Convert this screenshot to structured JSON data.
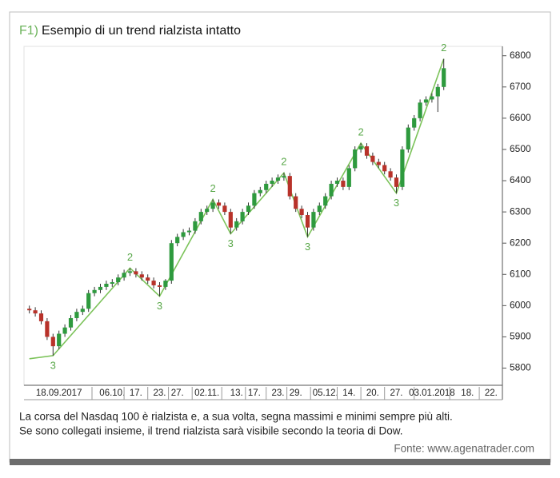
{
  "chart_data": {
    "type": "candlestick",
    "title_prefix": "F1)",
    "title": "Esempio di un trend rialzista intatto",
    "caption": [
      "La corsa del Nasdaq 100 è rialzista e, a sua volta, segna massimi e minimi sempre più alti.",
      "Se sono collegati insieme, il trend rialzista sarà visibile secondo la teoria di Dow."
    ],
    "source": "Fonte: www.agenatrader.com",
    "categories": [
      null,
      null,
      null,
      null,
      null,
      "18.09.2017",
      null,
      null,
      null,
      null,
      null,
      null,
      null,
      null,
      "06.10.",
      null,
      null,
      null,
      "17.",
      null,
      null,
      null,
      "23.",
      null,
      null,
      "27.",
      null,
      null,
      null,
      null,
      "02.11.",
      null,
      null,
      null,
      null,
      "13.",
      null,
      null,
      "17.",
      null,
      null,
      null,
      "23.",
      null,
      null,
      "29.",
      null,
      null,
      null,
      null,
      "05.12.",
      null,
      null,
      null,
      "14.",
      null,
      null,
      null,
      "20.",
      null,
      null,
      null,
      "27.",
      null,
      null,
      null,
      null,
      null,
      "03.01.2018",
      null,
      null,
      null,
      null,
      null,
      "18.",
      null,
      null,
      null,
      "22.",
      null
    ],
    "open": [
      5990,
      5985,
      5975,
      5950,
      5900,
      5870,
      5910,
      5930,
      5960,
      5980,
      5990,
      6040,
      6050,
      6060,
      6070,
      6075,
      6090,
      6105,
      6110,
      6100,
      6090,
      6080,
      6065,
      6060,
      6080,
      6200,
      6220,
      6235,
      6240,
      6270,
      6300,
      6310,
      6330,
      6320,
      6300,
      6250,
      6270,
      6300,
      6320,
      6360,
      6370,
      6390,
      6400,
      6410,
      6415,
      6350,
      6310,
      6290,
      6250,
      6300,
      6320,
      6350,
      6390,
      6400,
      6380,
      6440,
      6500,
      6510,
      6480,
      6460,
      6450,
      6430,
      6410,
      6380,
      6500,
      6570,
      6600,
      6650,
      6660,
      6670,
      6700,
      null,
      null,
      null,
      null,
      null,
      null,
      null,
      null,
      null
    ],
    "high": [
      6000,
      5995,
      5985,
      5960,
      5910,
      5920,
      5940,
      5970,
      5990,
      6000,
      6050,
      6060,
      6070,
      6080,
      6085,
      6100,
      6115,
      6120,
      6120,
      6110,
      6100,
      6090,
      6075,
      6085,
      6210,
      6230,
      6245,
      6250,
      6280,
      6310,
      6320,
      6340,
      6340,
      6330,
      6310,
      6280,
      6310,
      6330,
      6370,
      6380,
      6400,
      6410,
      6420,
      6425,
      6425,
      6360,
      6320,
      6300,
      6310,
      6330,
      6360,
      6400,
      6410,
      6410,
      6450,
      6510,
      6520,
      6520,
      6490,
      6470,
      6460,
      6440,
      6420,
      6510,
      6580,
      6610,
      6660,
      6670,
      6680,
      6710,
      6790,
      null,
      null,
      null,
      null,
      null,
      null,
      null,
      null,
      null
    ],
    "low": [
      5975,
      5965,
      5940,
      5890,
      5840,
      5860,
      5900,
      5920,
      5950,
      5970,
      5980,
      6030,
      6040,
      6050,
      6060,
      6065,
      6080,
      6095,
      6090,
      6080,
      6070,
      6055,
      6030,
      6050,
      6070,
      6190,
      6210,
      6225,
      6230,
      6260,
      6290,
      6300,
      6310,
      6290,
      6230,
      6240,
      6260,
      6290,
      6310,
      6350,
      6360,
      6380,
      6390,
      6400,
      6340,
      6300,
      6280,
      6220,
      6240,
      6290,
      6310,
      6340,
      6380,
      6370,
      6370,
      6430,
      6490,
      6470,
      6450,
      6440,
      6420,
      6400,
      6360,
      6370,
      6490,
      6560,
      6590,
      6640,
      6650,
      6620,
      6690,
      null,
      null,
      null,
      null,
      null,
      null,
      null,
      null,
      null
    ],
    "close": [
      5985,
      5975,
      5950,
      5900,
      5870,
      5910,
      5930,
      5960,
      5980,
      5990,
      6040,
      6050,
      6060,
      6070,
      6075,
      6090,
      6105,
      6110,
      6100,
      6090,
      6080,
      6065,
      6060,
      6080,
      6200,
      6220,
      6235,
      6240,
      6270,
      6300,
      6310,
      6330,
      6320,
      6300,
      6250,
      6270,
      6300,
      6320,
      6360,
      6370,
      6390,
      6400,
      6410,
      6415,
      6350,
      6310,
      6290,
      6250,
      6300,
      6320,
      6350,
      6390,
      6400,
      6380,
      6440,
      6500,
      6510,
      6480,
      6460,
      6450,
      6430,
      6410,
      6380,
      6500,
      6570,
      6600,
      6650,
      6660,
      6670,
      6700,
      6760,
      null,
      null,
      null,
      null,
      null,
      null,
      null,
      null,
      null
    ],
    "up_color": "#2e9a3e",
    "down_color": "#b8322a",
    "trend_color": "#7cc35a",
    "label_color": "#5aa84a",
    "swings": [
      {
        "label": null,
        "at": 0,
        "value": 5830
      },
      {
        "label": "3",
        "at": 4,
        "value": 5840
      },
      {
        "label": "2",
        "at": 17,
        "value": 6120
      },
      {
        "label": "3",
        "at": 22,
        "value": 6030
      },
      {
        "label": "2",
        "at": 31,
        "value": 6340
      },
      {
        "label": "3",
        "at": 34,
        "value": 6230
      },
      {
        "label": "2",
        "at": 43,
        "value": 6425
      },
      {
        "label": "3",
        "at": 47,
        "value": 6220
      },
      {
        "label": "2",
        "at": 56,
        "value": 6520
      },
      {
        "label": "3",
        "at": 62,
        "value": 6360
      },
      {
        "label": "2",
        "at": 70,
        "value": 6790
      }
    ],
    "ylim": [
      5745,
      6830
    ],
    "yticks": [
      5800,
      5900,
      6000,
      6100,
      6200,
      6300,
      6400,
      6500,
      6600,
      6700,
      6800
    ]
  }
}
